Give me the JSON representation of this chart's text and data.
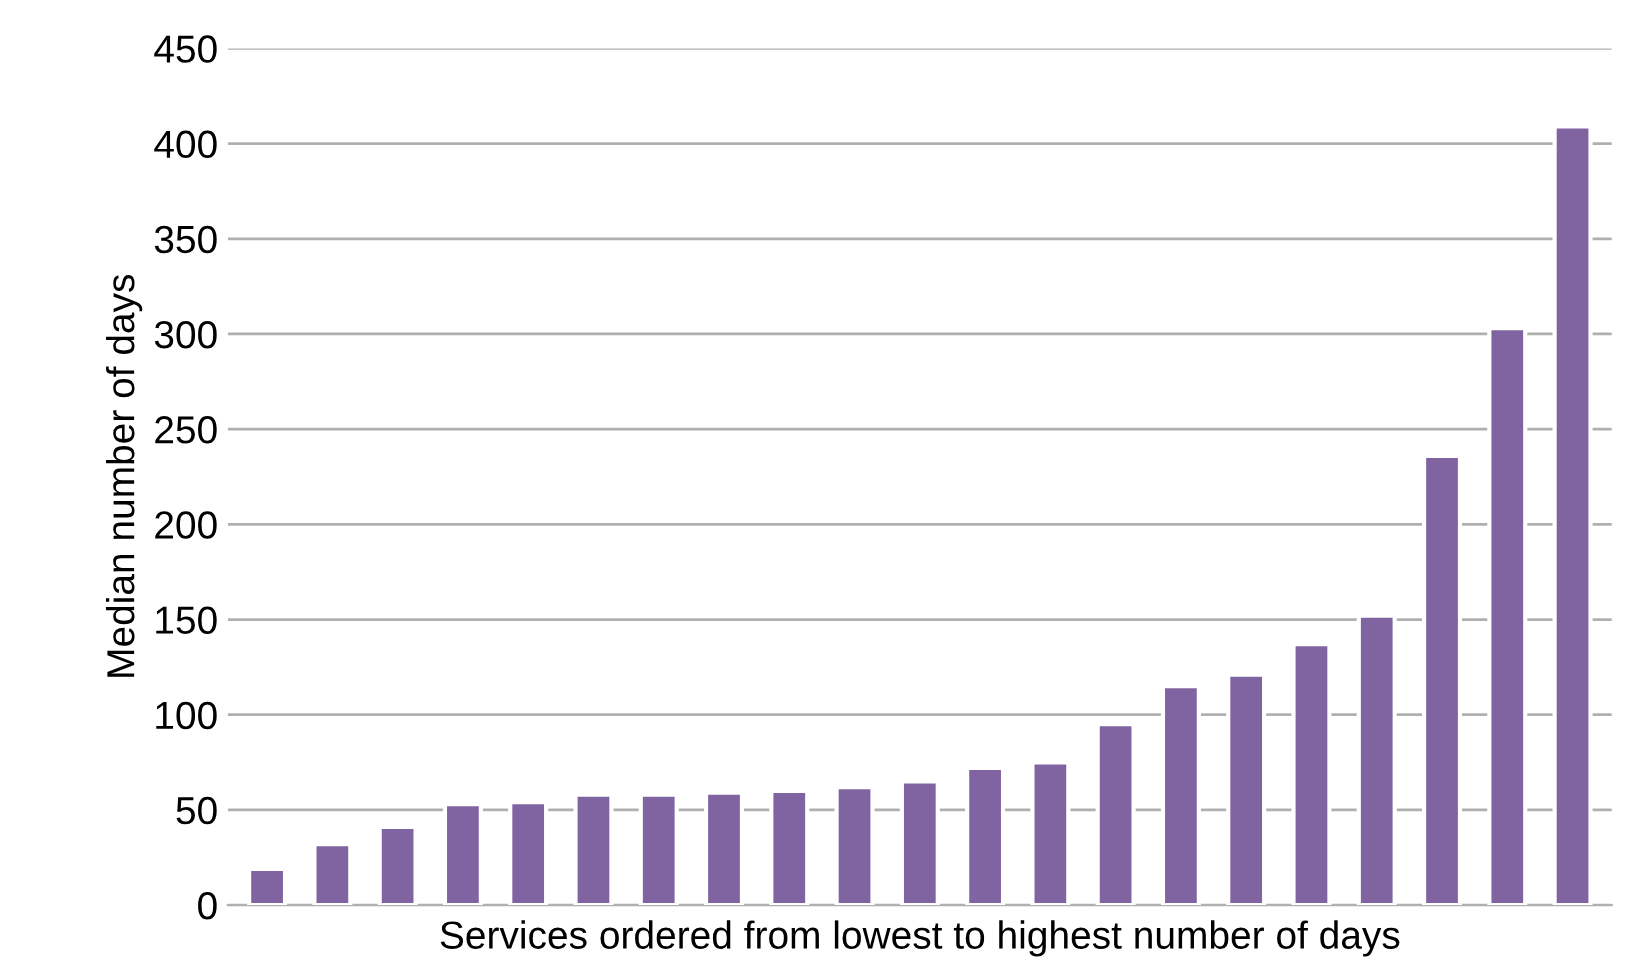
{
  "chart_data": {
    "type": "bar",
    "xlabel": "Services ordered from lowest to highest number of days",
    "ylabel": "Median number of days",
    "categories": [
      null,
      null,
      null,
      null,
      null,
      null,
      null,
      null,
      null,
      null,
      null,
      null,
      null,
      null,
      null,
      null,
      null,
      null,
      null,
      null,
      null
    ],
    "values": [
      19,
      32,
      41,
      53,
      54,
      58,
      58,
      59,
      60,
      62,
      65,
      72,
      75,
      95,
      115,
      121,
      137,
      152,
      236,
      303,
      409
    ],
    "color": "#8064a2",
    "ylim": [
      0,
      450
    ],
    "yticks": [
      0,
      50,
      100,
      150,
      200,
      250,
      300,
      350,
      400,
      450
    ],
    "grid": "y"
  }
}
